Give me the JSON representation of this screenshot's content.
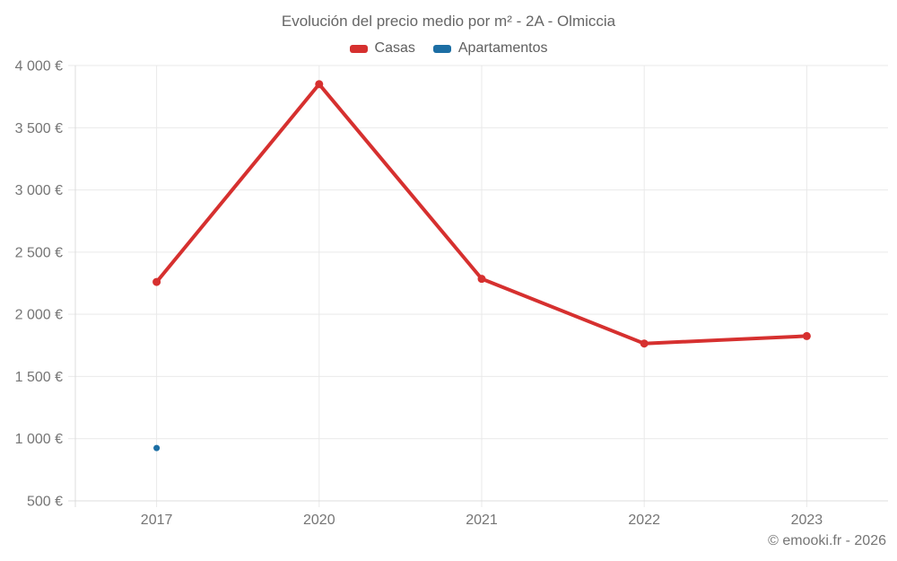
{
  "header": {
    "title": "Evolución del precio medio por m² - 2A - Olmiccia"
  },
  "chart_data": {
    "type": "line",
    "title": "Evolución del precio medio por m² - 2A - Olmiccia",
    "categories": [
      "2017",
      "2020",
      "2021",
      "2022",
      "2023"
    ],
    "series": [
      {
        "name": "Casas",
        "color": "#d6302f",
        "values": [
          2260,
          3850,
          2285,
          1765,
          1825
        ]
      },
      {
        "name": "Apartamentos",
        "color": "#1c6ea4",
        "values": [
          925,
          null,
          null,
          null,
          null
        ]
      }
    ],
    "ylim": [
      500,
      4000
    ],
    "y_tick_step": 500,
    "y_tick_labels": [
      "500 €",
      "1 000 €",
      "1 500 €",
      "2 000 €",
      "2 500 €",
      "3 000 €",
      "3 500 €",
      "4 000 €"
    ],
    "xlabel": "",
    "ylabel": "",
    "grid": true,
    "legend_position": "top"
  },
  "footer": {
    "copyright": "© emooki.fr - 2026"
  },
  "colors": {
    "grid": "#e9e9e9",
    "axis": "#dcdcdc",
    "tick_text": "#757575",
    "title_text": "#666666",
    "background": "#ffffff"
  }
}
